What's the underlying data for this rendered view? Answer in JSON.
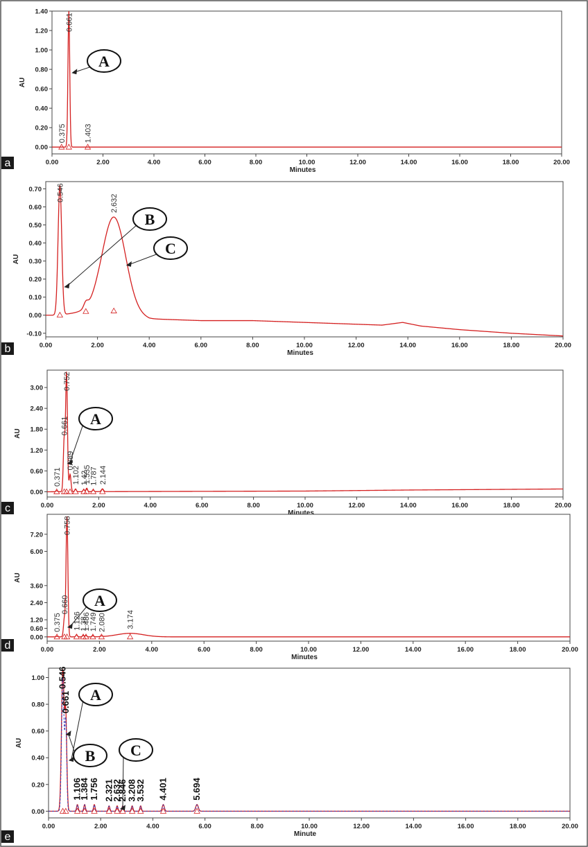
{
  "chart_data": [
    {
      "type": "line",
      "panel_label": "a",
      "xlabel": "Minutes",
      "ylabel": "AU",
      "xlim": [
        0,
        20
      ],
      "ylim": [
        -0.07,
        1.4
      ],
      "x_ticks": [
        "0.00",
        "2.00",
        "4.00",
        "6.00",
        "8.00",
        "10.00",
        "12.00",
        "14.00",
        "16.00",
        "18.00",
        "20.00"
      ],
      "y_ticks": [
        "0.00",
        "0.20",
        "0.40",
        "0.60",
        "0.80",
        "1.00",
        "1.20",
        "1.40"
      ],
      "y_tick_values": [
        0,
        0.2,
        0.4,
        0.6,
        0.8,
        1.0,
        1.2,
        1.4
      ],
      "baseline": 0.0,
      "drift": [],
      "peaks": [
        {
          "rt": 0.375,
          "label": "0.375",
          "height": 0.0,
          "width": 0.02
        },
        {
          "rt": 0.661,
          "label": "0.661",
          "height": 1.4,
          "width": 0.035
        },
        {
          "rt": 1.403,
          "label": "1.403",
          "height": 0.0,
          "width": 0.03
        }
      ],
      "callouts": [
        {
          "letter": "A",
          "rt": 0.661
        }
      ],
      "series_color": "#d41f1f"
    },
    {
      "type": "line",
      "panel_label": "b",
      "xlabel": "Minutes",
      "ylabel": "AU",
      "xlim": [
        0,
        20
      ],
      "ylim": [
        -0.12,
        0.74
      ],
      "x_ticks": [
        "0.00",
        "2.00",
        "4.00",
        "6.00",
        "8.00",
        "10.00",
        "12.00",
        "14.00",
        "16.00",
        "18.00",
        "20.00"
      ],
      "y_ticks": [
        "-0.10",
        "0.00",
        "0.10",
        "0.20",
        "0.30",
        "0.40",
        "0.50",
        "0.60",
        "0.70"
      ],
      "y_tick_values": [
        -0.1,
        0,
        0.1,
        0.2,
        0.3,
        0.4,
        0.5,
        0.6,
        0.7
      ],
      "baseline": 0.0,
      "drift": [
        [
          0,
          0.0
        ],
        [
          0.5,
          0.0
        ],
        [
          1,
          0.01
        ],
        [
          2,
          0.03
        ],
        [
          3,
          0.02
        ],
        [
          4,
          -0.02
        ],
        [
          6,
          -0.03
        ],
        [
          8,
          -0.03
        ],
        [
          10,
          -0.04
        ],
        [
          12,
          -0.05
        ],
        [
          13,
          -0.055
        ],
        [
          13.8,
          -0.04
        ],
        [
          14.5,
          -0.06
        ],
        [
          16,
          -0.08
        ],
        [
          18,
          -0.1
        ],
        [
          20,
          -0.115
        ]
      ],
      "peaks": [
        {
          "rt": 0.546,
          "label": "0.546",
          "height": 0.72,
          "width": 0.07
        },
        {
          "rt": 2.632,
          "label": "2.632",
          "height": 0.52,
          "width": 0.45
        },
        {
          "rt": 1.55,
          "label": "",
          "height": 0.03,
          "width": 0.08
        }
      ],
      "callouts": [
        {
          "letter": "B",
          "rt": 0.6
        },
        {
          "letter": "C",
          "rt": 3.0
        }
      ],
      "series_color": "#d41f1f"
    },
    {
      "type": "line",
      "panel_label": "c",
      "xlabel": "Minutes",
      "ylabel": "AU",
      "xlim": [
        0,
        20
      ],
      "ylim": [
        -0.15,
        3.5
      ],
      "x_ticks": [
        "0.00",
        "2.00",
        "4.00",
        "6.00",
        "8.00",
        "10.00",
        "12.00",
        "14.00",
        "16.00",
        "18.00",
        "20.00"
      ],
      "y_ticks": [
        "0.00",
        "0.60",
        "1.20",
        "1.80",
        "2.40",
        "3.00"
      ],
      "y_tick_values": [
        0,
        0.6,
        1.2,
        1.8,
        2.4,
        3.0
      ],
      "baseline": 0.0,
      "drift": [
        [
          0,
          0
        ],
        [
          10,
          0.02
        ],
        [
          14,
          0.05
        ],
        [
          20,
          0.08
        ]
      ],
      "peaks": [
        {
          "rt": 0.371,
          "label": "0.371",
          "height": 0.03,
          "width": 0.03
        },
        {
          "rt": 0.661,
          "label": "0.661",
          "height": 1.5,
          "width": 0.035
        },
        {
          "rt": 0.752,
          "label": "0.752",
          "height": 3.4,
          "width": 0.035
        },
        {
          "rt": 0.889,
          "label": "0.889",
          "height": 0.5,
          "width": 0.035
        },
        {
          "rt": 1.102,
          "label": "1.102",
          "height": 0.08,
          "width": 0.03
        },
        {
          "rt": 1.42,
          "label": "1.42",
          "height": 0.06,
          "width": 0.03
        },
        {
          "rt": 1.535,
          "label": "1.535",
          "height": 0.1,
          "width": 0.03
        },
        {
          "rt": 1.787,
          "label": "1.787",
          "height": 0.05,
          "width": 0.03
        },
        {
          "rt": 2.144,
          "label": "2.144",
          "height": 0.08,
          "width": 0.04
        }
      ],
      "callouts": [
        {
          "letter": "A",
          "rt": 0.661
        }
      ],
      "series_color": "#d41f1f"
    },
    {
      "type": "line",
      "panel_label": "d",
      "xlabel": "Minutes",
      "ylabel": "AU",
      "xlim": [
        0,
        20
      ],
      "ylim": [
        -0.3,
        8.6
      ],
      "x_ticks": [
        "0.00",
        "2.00",
        "4.00",
        "6.00",
        "8.00",
        "10.00",
        "12.00",
        "14.00",
        "16.00",
        "18.00",
        "20.00"
      ],
      "y_ticks": [
        "0.00",
        "0.60",
        "1.20",
        "2.40",
        "3.60",
        "6.00",
        "7.20"
      ],
      "y_tick_values": [
        0,
        0.6,
        1.2,
        2.4,
        3.6,
        6.0,
        7.2
      ],
      "baseline": 0.0,
      "drift": [],
      "peaks": [
        {
          "rt": 0.375,
          "label": "0.375",
          "height": 0.05,
          "width": 0.03
        },
        {
          "rt": 0.66,
          "label": "0.660",
          "height": 1.3,
          "width": 0.035
        },
        {
          "rt": 0.758,
          "label": "0.758",
          "height": 8.5,
          "width": 0.035
        },
        {
          "rt": 1.126,
          "label": "1.126",
          "height": 0.15,
          "width": 0.03
        },
        {
          "rt": 1.38,
          "label": "1.38",
          "height": 0.1,
          "width": 0.03
        },
        {
          "rt": 1.486,
          "label": "1.486",
          "height": 0.1,
          "width": 0.03
        },
        {
          "rt": 1.749,
          "label": "1.749",
          "height": 0.08,
          "width": 0.03
        },
        {
          "rt": 2.08,
          "label": "2.080",
          "height": 0.05,
          "width": 0.04
        },
        {
          "rt": 3.174,
          "label": "3.174",
          "height": 0.25,
          "width": 0.5
        }
      ],
      "callouts": [
        {
          "letter": "A",
          "rt": 0.66
        }
      ],
      "series_color": "#d41f1f"
    },
    {
      "type": "line",
      "panel_label": "e",
      "xlabel": "Minute",
      "ylabel": "AU",
      "xlim": [
        0,
        20
      ],
      "ylim": [
        -0.05,
        1.07
      ],
      "x_ticks": [
        "0.00",
        "2.00",
        "4.00",
        "6.00",
        "8.00",
        "10.00",
        "12.00",
        "14.00",
        "16.00",
        "18.00",
        "20.00"
      ],
      "y_ticks": [
        "0.00",
        "0.20",
        "0.40",
        "0.60",
        "0.80",
        "1.00"
      ],
      "y_tick_values": [
        0,
        0.2,
        0.4,
        0.6,
        0.8,
        1.0
      ],
      "baseline": 0.0,
      "drift": [],
      "peaks": [
        {
          "rt": 0.546,
          "label": "0.546",
          "height": 1.05,
          "width": 0.05
        },
        {
          "rt": 0.661,
          "label": "0.661",
          "height": 0.7,
          "width": 0.04
        },
        {
          "rt": 1.106,
          "label": "1.106",
          "height": 0.05,
          "width": 0.03
        },
        {
          "rt": 1.384,
          "label": "1.384",
          "height": 0.05,
          "width": 0.03
        },
        {
          "rt": 1.756,
          "label": "1.756",
          "height": 0.05,
          "width": 0.03
        },
        {
          "rt": 2.321,
          "label": "2.321",
          "height": 0.04,
          "width": 0.03
        },
        {
          "rt": 2.632,
          "label": "2.632",
          "height": 0.04,
          "width": 0.03
        },
        {
          "rt": 2.846,
          "label": "2.846",
          "height": 0.04,
          "width": 0.03
        },
        {
          "rt": 3.208,
          "label": "3.208",
          "height": 0.04,
          "width": 0.03
        },
        {
          "rt": 3.532,
          "label": "3.532",
          "height": 0.04,
          "width": 0.03
        },
        {
          "rt": 4.401,
          "label": "4.401",
          "height": 0.05,
          "width": 0.04
        },
        {
          "rt": 5.694,
          "label": "5.694",
          "height": 0.05,
          "width": 0.05
        }
      ],
      "callouts": [
        {
          "letter": "A",
          "rt": 0.661
        },
        {
          "letter": "B",
          "rt": 0.546
        },
        {
          "letter": "C",
          "rt": 2.632
        }
      ],
      "series_color": "#d41f1f",
      "overlay_color": "#3a3ab0"
    }
  ]
}
